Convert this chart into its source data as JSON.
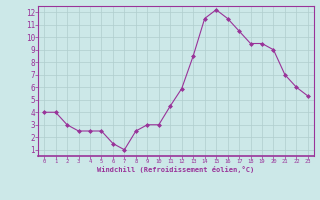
{
  "x": [
    0,
    1,
    2,
    3,
    4,
    5,
    6,
    7,
    8,
    9,
    10,
    11,
    12,
    13,
    14,
    15,
    16,
    17,
    18,
    19,
    20,
    21,
    22,
    23
  ],
  "y": [
    4.0,
    4.0,
    3.0,
    2.5,
    2.5,
    2.5,
    1.5,
    1.0,
    2.5,
    3.0,
    3.0,
    4.5,
    5.9,
    8.5,
    11.5,
    12.2,
    11.5,
    10.5,
    9.5,
    9.5,
    9.0,
    7.0,
    6.0,
    5.3
  ],
  "line_color": "#993399",
  "marker": "D",
  "marker_size": 2,
  "bg_color": "#cce8e8",
  "grid_color": "#b0cece",
  "xlabel": "Windchill (Refroidissement éolien,°C)",
  "xlabel_color": "#993399",
  "tick_color": "#993399",
  "xlim": [
    -0.5,
    23.5
  ],
  "ylim": [
    0.5,
    12.5
  ],
  "xticks": [
    0,
    1,
    2,
    3,
    4,
    5,
    6,
    7,
    8,
    9,
    10,
    11,
    12,
    13,
    14,
    15,
    16,
    17,
    18,
    19,
    20,
    21,
    22,
    23
  ],
  "yticks": [
    1,
    2,
    3,
    4,
    5,
    6,
    7,
    8,
    9,
    10,
    11,
    12
  ]
}
